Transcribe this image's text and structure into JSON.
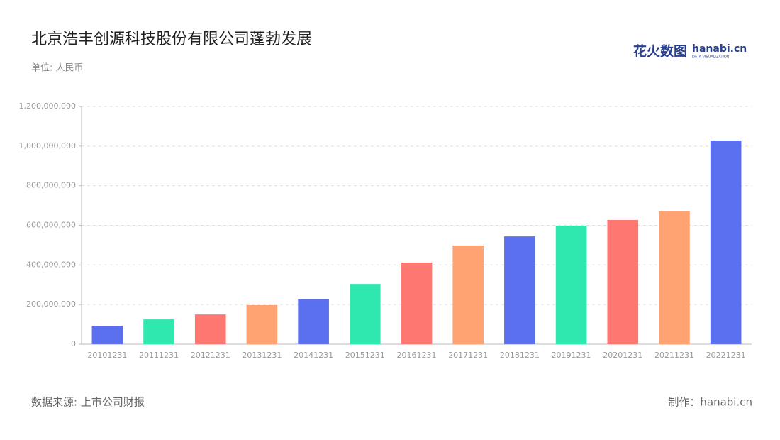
{
  "chart_data": {
    "type": "bar",
    "title": "北京浩丰创源科技股份有限公司蓬勃发展",
    "subtitle": "单位: 人民币",
    "source": "数据来源: 上市公司财报",
    "credit": "制作：hanabi.cn",
    "logo": {
      "brand": "花火数图",
      "site": "hanabi.cn",
      "tagline": "DATA VISUALIZATION"
    },
    "categories": [
      "20101231",
      "20111231",
      "20121231",
      "20131231",
      "20141231",
      "20151231",
      "20161231",
      "20171231",
      "20181231",
      "20191231",
      "20201231",
      "20211231",
      "20221231"
    ],
    "values": [
      93000000,
      125000000,
      150000000,
      197000000,
      229000000,
      304000000,
      412000000,
      498000000,
      544000000,
      598000000,
      627000000,
      670000000,
      1028000000
    ],
    "colors": [
      "#5a70ef",
      "#2fe8b0",
      "#ff7771",
      "#ffa372"
    ],
    "ylim": [
      0,
      1200000000
    ],
    "yticks": [
      0,
      {
        "value": 200000000,
        "label": "200,000,000"
      },
      {
        "value": 400000000,
        "label": "400,000,000"
      },
      {
        "value": 600000000,
        "label": "600,000,000"
      },
      {
        "value": 800000000,
        "label": "800,000,000"
      },
      {
        "value": 1000000000,
        "label": "1,000,000,000"
      },
      {
        "value": 1200000000,
        "label": "1,200,000,000"
      }
    ],
    "grid": true
  }
}
